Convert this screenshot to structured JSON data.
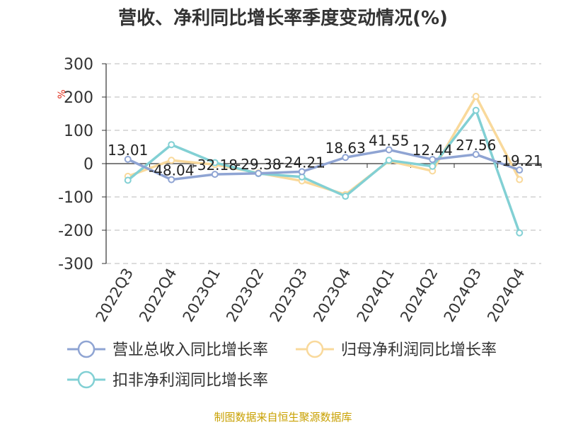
{
  "title": "营收、净利同比增长率季度变动情况(%)",
  "footer": "制图数据来自恒生聚源数据库",
  "chart_data": {
    "type": "line",
    "title": "营收、净利同比增长率季度变动情况(%)",
    "ylabel": "%",
    "xlabel": "",
    "ylim": [
      -300,
      300
    ],
    "yticks": [
      300,
      200,
      100,
      0,
      -100,
      -200,
      -300
    ],
    "categories": [
      "2022Q3",
      "2022Q4",
      "2023Q1",
      "2023Q2",
      "2023Q3",
      "2023Q4",
      "2024Q1",
      "2024Q2",
      "2024Q3",
      "2024Q4"
    ],
    "grid": true,
    "legend_position": "bottom",
    "series": [
      {
        "name": "营业总收入同比增长率",
        "color": "#8fa4d3",
        "values": [
          13.01,
          -48.04,
          -32.18,
          -29.38,
          -24.21,
          18.63,
          41.55,
          12.44,
          27.56,
          -19.21
        ],
        "labels": [
          "13.01",
          "-48.04",
          "-32.18",
          "-29.38",
          "-24.21",
          "18.63",
          "41.55",
          "12.44",
          "27.56",
          "-19.21"
        ]
      },
      {
        "name": "归母净利润同比增长率",
        "color": "#f9d99b",
        "values": [
          -38,
          10,
          -3,
          -28,
          -52,
          -93,
          8,
          -22,
          202,
          -48
        ]
      },
      {
        "name": "扣非净利润同比增长率",
        "color": "#82d0d4",
        "values": [
          -50,
          57,
          3,
          -30,
          -40,
          -98,
          10,
          -8,
          160,
          -208
        ]
      }
    ]
  }
}
